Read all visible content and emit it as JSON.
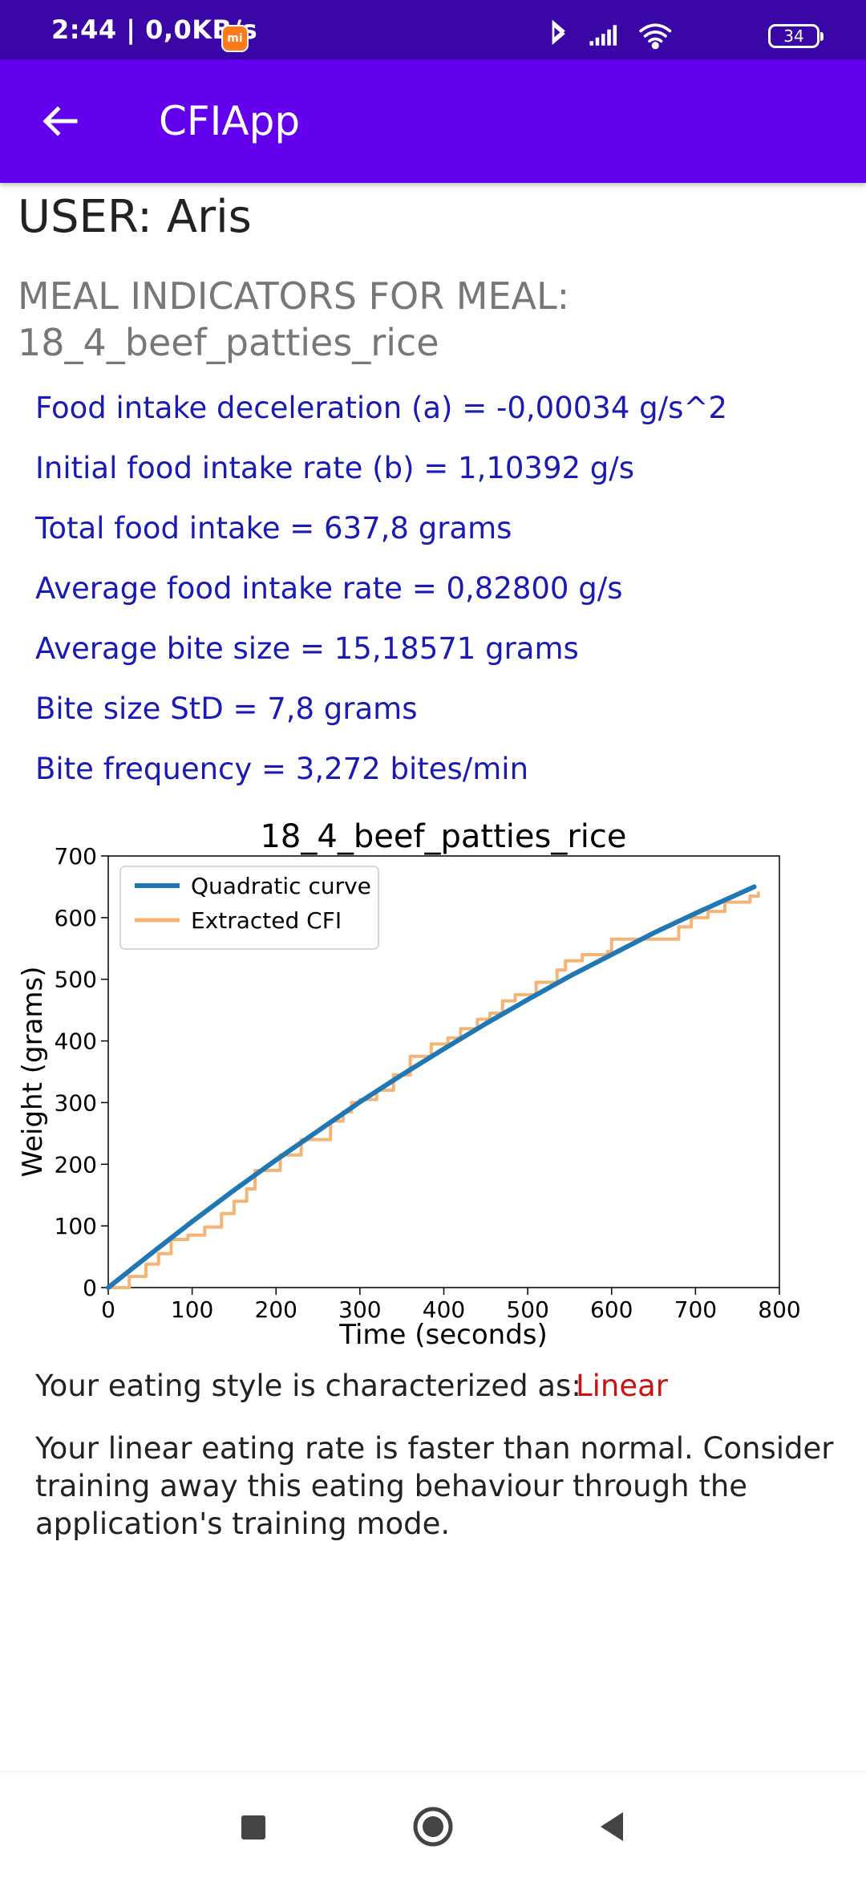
{
  "status_bar": {
    "time_speed": "2:44 | 0,0KB/s",
    "app_badge": "mi",
    "battery_level": "34",
    "icons": [
      "bluetooth-icon",
      "signal-icon",
      "wifi-icon",
      "battery-icon"
    ]
  },
  "app_bar": {
    "title": "CFIApp",
    "back_icon": "arrow-left-icon"
  },
  "user": {
    "label": "USER: Aris"
  },
  "meal": {
    "heading_line1": "MEAL INDICATORS FOR MEAL:",
    "heading_line2": "18_4_beef_patties_rice"
  },
  "indicators": [
    "Food intake deceleration (a) = -0,00034 g/s^2",
    "Initial food intake rate (b) = 1,10392 g/s",
    "Total food intake = 637,8 grams",
    "Average food intake rate = 0,82800 g/s",
    "Average bite size = 15,18571 grams",
    "Bite size StD = 7,8 grams",
    "Bite frequency = 3,272 bites/min"
  ],
  "chart_data": {
    "type": "line",
    "title": "18_4_beef_patties_rice",
    "xlabel": "Time (seconds)",
    "ylabel": "Weight (grams)",
    "xlim": [
      0,
      800
    ],
    "ylim": [
      0,
      700
    ],
    "xticks": [
      0,
      100,
      200,
      300,
      400,
      500,
      600,
      700,
      800
    ],
    "yticks": [
      0,
      100,
      200,
      300,
      400,
      500,
      600,
      700
    ],
    "legend_position": "top-left",
    "grid": false,
    "series": [
      {
        "name": "Quadratic curve",
        "color": "#1f77b4",
        "x": [
          0,
          50,
          100,
          150,
          200,
          250,
          300,
          350,
          400,
          450,
          500,
          550,
          600,
          650,
          700,
          770
        ],
        "y": [
          0,
          54,
          107,
          158,
          207,
          254,
          301,
          345,
          387,
          428,
          467,
          505,
          540,
          575,
          607,
          650
        ]
      },
      {
        "name": "Extracted CFI",
        "color": "#f5b475",
        "step": true,
        "x": [
          0,
          25,
          45,
          60,
          75,
          95,
          115,
          135,
          150,
          165,
          175,
          205,
          230,
          265,
          280,
          290,
          300,
          320,
          340,
          360,
          385,
          405,
          420,
          440,
          455,
          470,
          485,
          510,
          535,
          545,
          565,
          595,
          600,
          630,
          680,
          695,
          715,
          735,
          765,
          775
        ],
        "y": [
          0,
          18,
          38,
          55,
          78,
          85,
          98,
          120,
          140,
          160,
          190,
          215,
          240,
          270,
          285,
          300,
          305,
          320,
          345,
          375,
          395,
          405,
          420,
          435,
          445,
          465,
          475,
          495,
          515,
          530,
          540,
          545,
          565,
          565,
          585,
          600,
          610,
          625,
          635,
          640
        ]
      }
    ]
  },
  "result": {
    "eating_style_label": "Your eating style is characterized as:",
    "eating_style_value": "Linear",
    "advice": "Your linear eating rate is faster than normal. Consider training away this eating behaviour through the application's training mode."
  },
  "nav_bar": {
    "buttons": [
      "recents-square-icon",
      "home-circle-icon",
      "back-triangle-icon"
    ]
  }
}
